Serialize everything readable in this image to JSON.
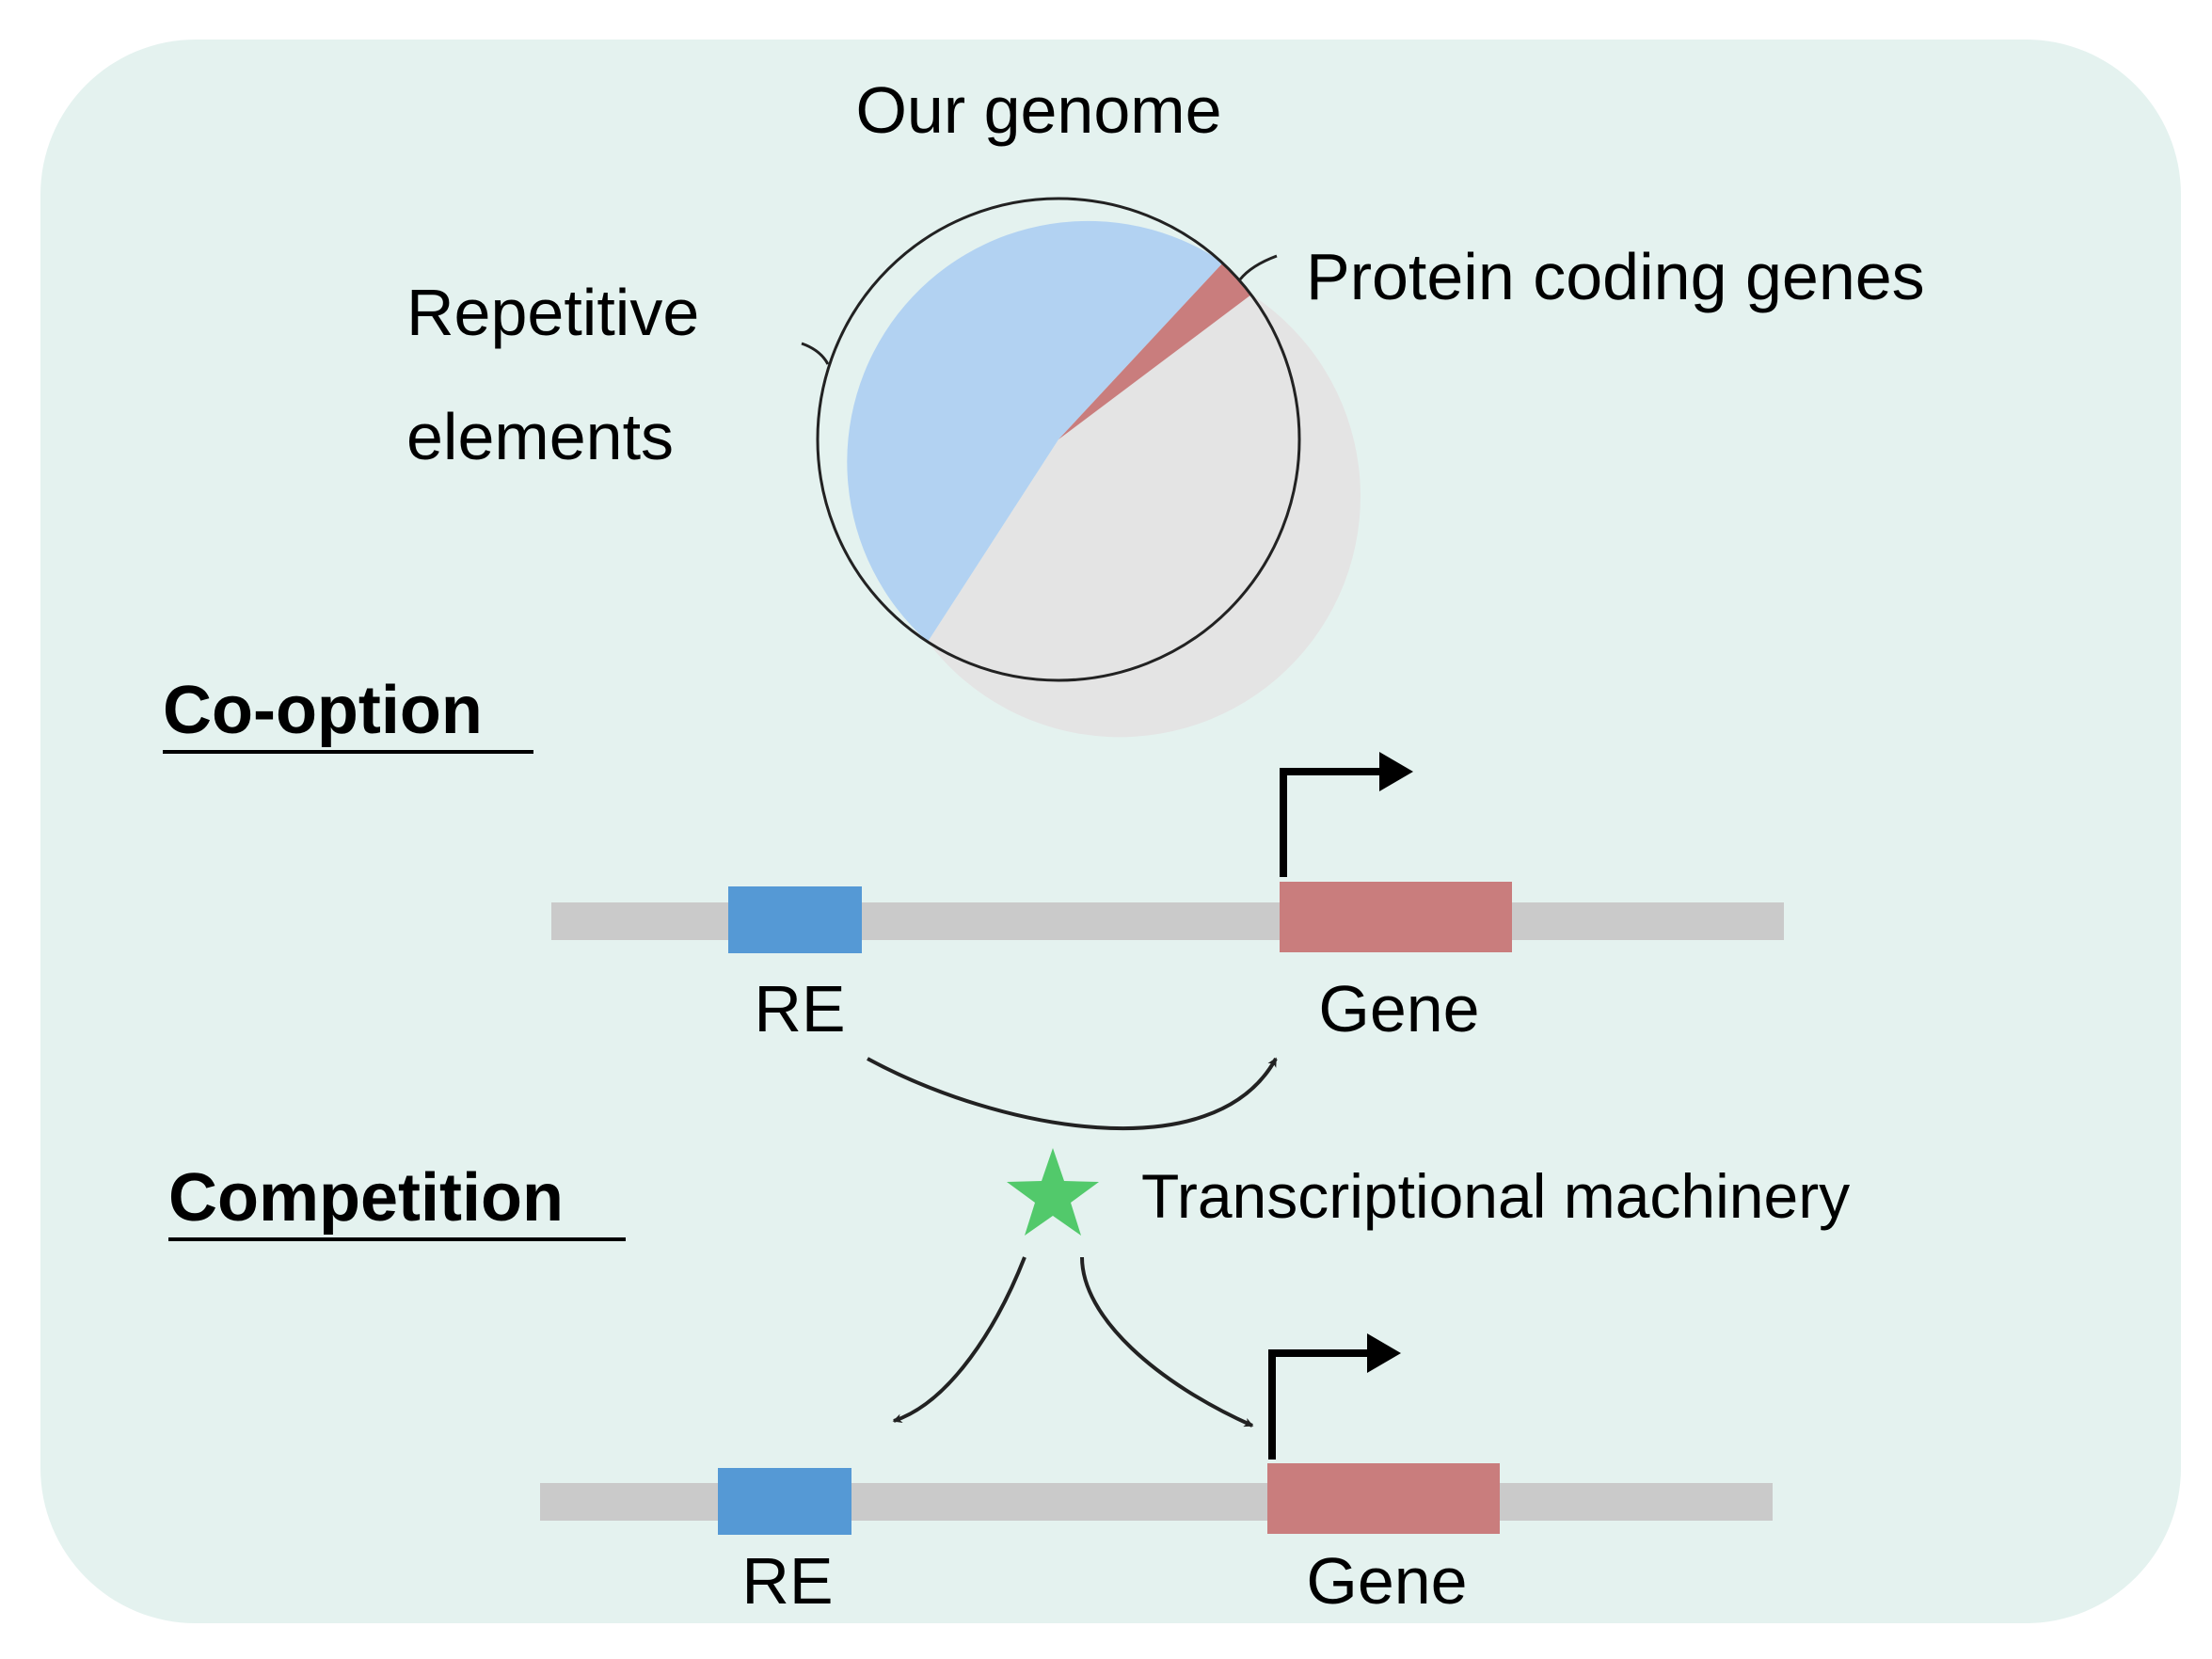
{
  "genome": {
    "title": "Our genome",
    "repetitive_line1": "Repetitive",
    "repetitive_line2": "elements",
    "protein_coding": "Protein coding genes"
  },
  "cooption": {
    "heading": "Co-option",
    "re_label": "RE",
    "gene_label": "Gene"
  },
  "competition": {
    "heading": "Competition",
    "machinery_label": "Transcriptional machinery",
    "re_label": "RE",
    "gene_label": "Gene"
  },
  "colors": {
    "panel_background": "#e4f2ef",
    "repetitive_slice": "#b2d2f2",
    "protein_slice": "#c97d7d",
    "other_slice": "#e4e4e4",
    "dna_strand": "#cacaca",
    "re_box": "#5599d5",
    "gene_box": "#c97d7d",
    "star": "#52c96b"
  },
  "icons": {
    "promoter": "bent-arrow-icon",
    "machinery": "star-icon"
  }
}
